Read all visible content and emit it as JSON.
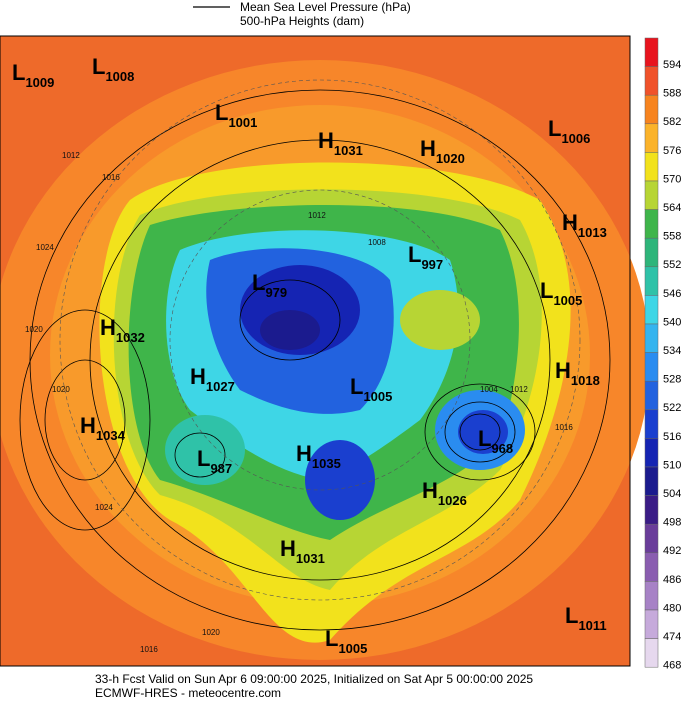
{
  "legend": {
    "line_label": "Mean Sea Level Pressure (hPa)",
    "fill_label": "500-hPa Heights (dam)"
  },
  "colorbar": {
    "labels": [
      "594",
      "588",
      "582",
      "576",
      "570",
      "564",
      "558",
      "552",
      "546",
      "540",
      "534",
      "528",
      "522",
      "516",
      "510",
      "504",
      "498",
      "492",
      "486",
      "480",
      "474",
      "468"
    ],
    "colors": [
      "#e8141e",
      "#f0522a",
      "#f7841f",
      "#fbb32a",
      "#f2e21c",
      "#b7d534",
      "#3fb54a",
      "#2eb57a",
      "#2fc2a8",
      "#3ed6e6",
      "#35b4ef",
      "#2a8cf0",
      "#2262df",
      "#1a3fcf",
      "#1524b3",
      "#1b1b8e",
      "#3a1c86",
      "#6a3d9a",
      "#8a5db0",
      "#a782c6",
      "#c6aadb",
      "#e6d8ee"
    ]
  },
  "centers": [
    {
      "letter": "L",
      "value": "1009"
    },
    {
      "letter": "L",
      "value": "1008"
    },
    {
      "letter": "L",
      "value": "1001"
    },
    {
      "letter": "H",
      "value": "1031"
    },
    {
      "letter": "H",
      "value": "1020"
    },
    {
      "letter": "L",
      "value": "1006"
    },
    {
      "letter": "H",
      "value": "1013"
    },
    {
      "letter": "L",
      "value": "997"
    },
    {
      "letter": "L",
      "value": "1005"
    },
    {
      "letter": "L",
      "value": "979"
    },
    {
      "letter": "H",
      "value": "1032"
    },
    {
      "letter": "H",
      "value": "1027"
    },
    {
      "letter": "H",
      "value": "1018"
    },
    {
      "letter": "L",
      "value": "1005"
    },
    {
      "letter": "H",
      "value": "1034"
    },
    {
      "letter": "L",
      "value": "987"
    },
    {
      "letter": "H",
      "value": "1035"
    },
    {
      "letter": "L",
      "value": "968"
    },
    {
      "letter": "H",
      "value": "1026"
    },
    {
      "letter": "H",
      "value": "1031"
    },
    {
      "letter": "L",
      "value": "1011"
    },
    {
      "letter": "L",
      "value": "1005"
    }
  ],
  "isobar_labels": [
    "1012",
    "1016",
    "1024",
    "1020",
    "1020",
    "1024",
    "1020",
    "1016",
    "1012",
    "1008",
    "1004",
    "1016",
    "1012"
  ],
  "footer": {
    "line1": "33-h Fcst Valid on Sun Apr  6 09:00:00 2025, Initialized on Sat Apr  5 00:00:00 2025",
    "line2": "ECMWF-HRES  - meteocentre.com"
  }
}
